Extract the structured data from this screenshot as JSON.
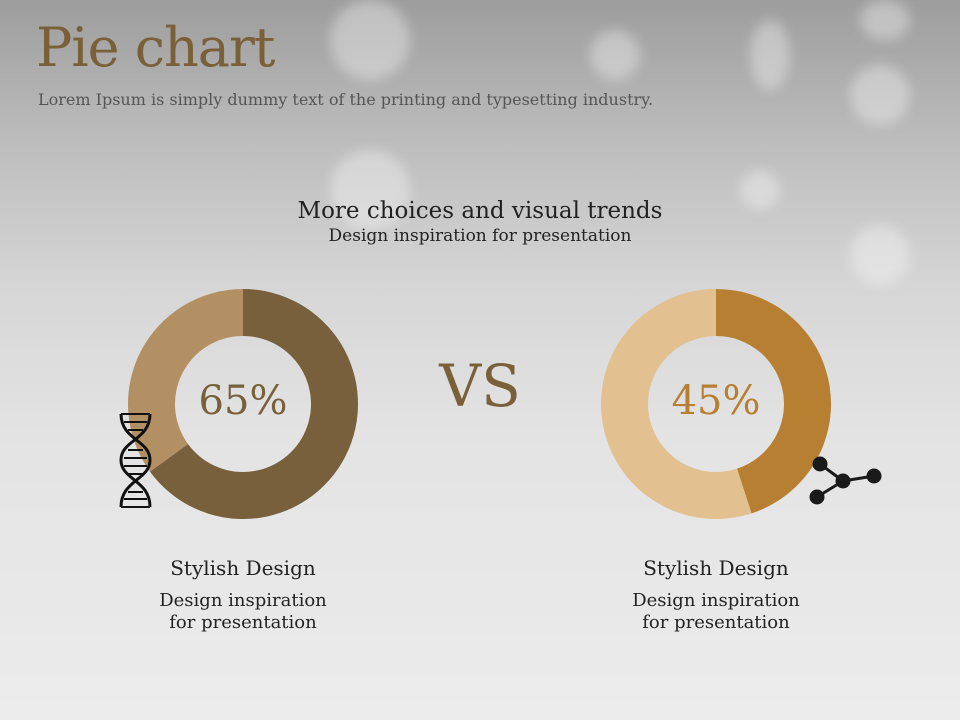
{
  "header": {
    "title": "Pie chart",
    "subtitle": "Lorem Ipsum is simply dummy text of the printing and typesetting industry."
  },
  "section": {
    "heading": "More choices and visual trends",
    "subheading": "Design inspiration for presentation"
  },
  "vs_label": "VS",
  "chart_data": [
    {
      "type": "pie",
      "variant": "donut",
      "label": "65%",
      "values": [
        65,
        35
      ],
      "colors": [
        "#77603b",
        "#b39064"
      ],
      "icon": "dna-icon",
      "caption_title": "Stylish Design",
      "caption_lines": [
        "Design inspiration",
        "for presentation"
      ]
    },
    {
      "type": "pie",
      "variant": "donut",
      "label": "45%",
      "values": [
        45,
        55
      ],
      "colors": [
        "#b77f31",
        "#e3c08f"
      ],
      "icon": "molecule-icon",
      "caption_title": "Stylish Design",
      "caption_lines": [
        "Design inspiration",
        "for presentation"
      ]
    }
  ],
  "colors": {
    "title": "#7a6038",
    "left_label": "#77603b",
    "right_label": "#b77f31"
  }
}
